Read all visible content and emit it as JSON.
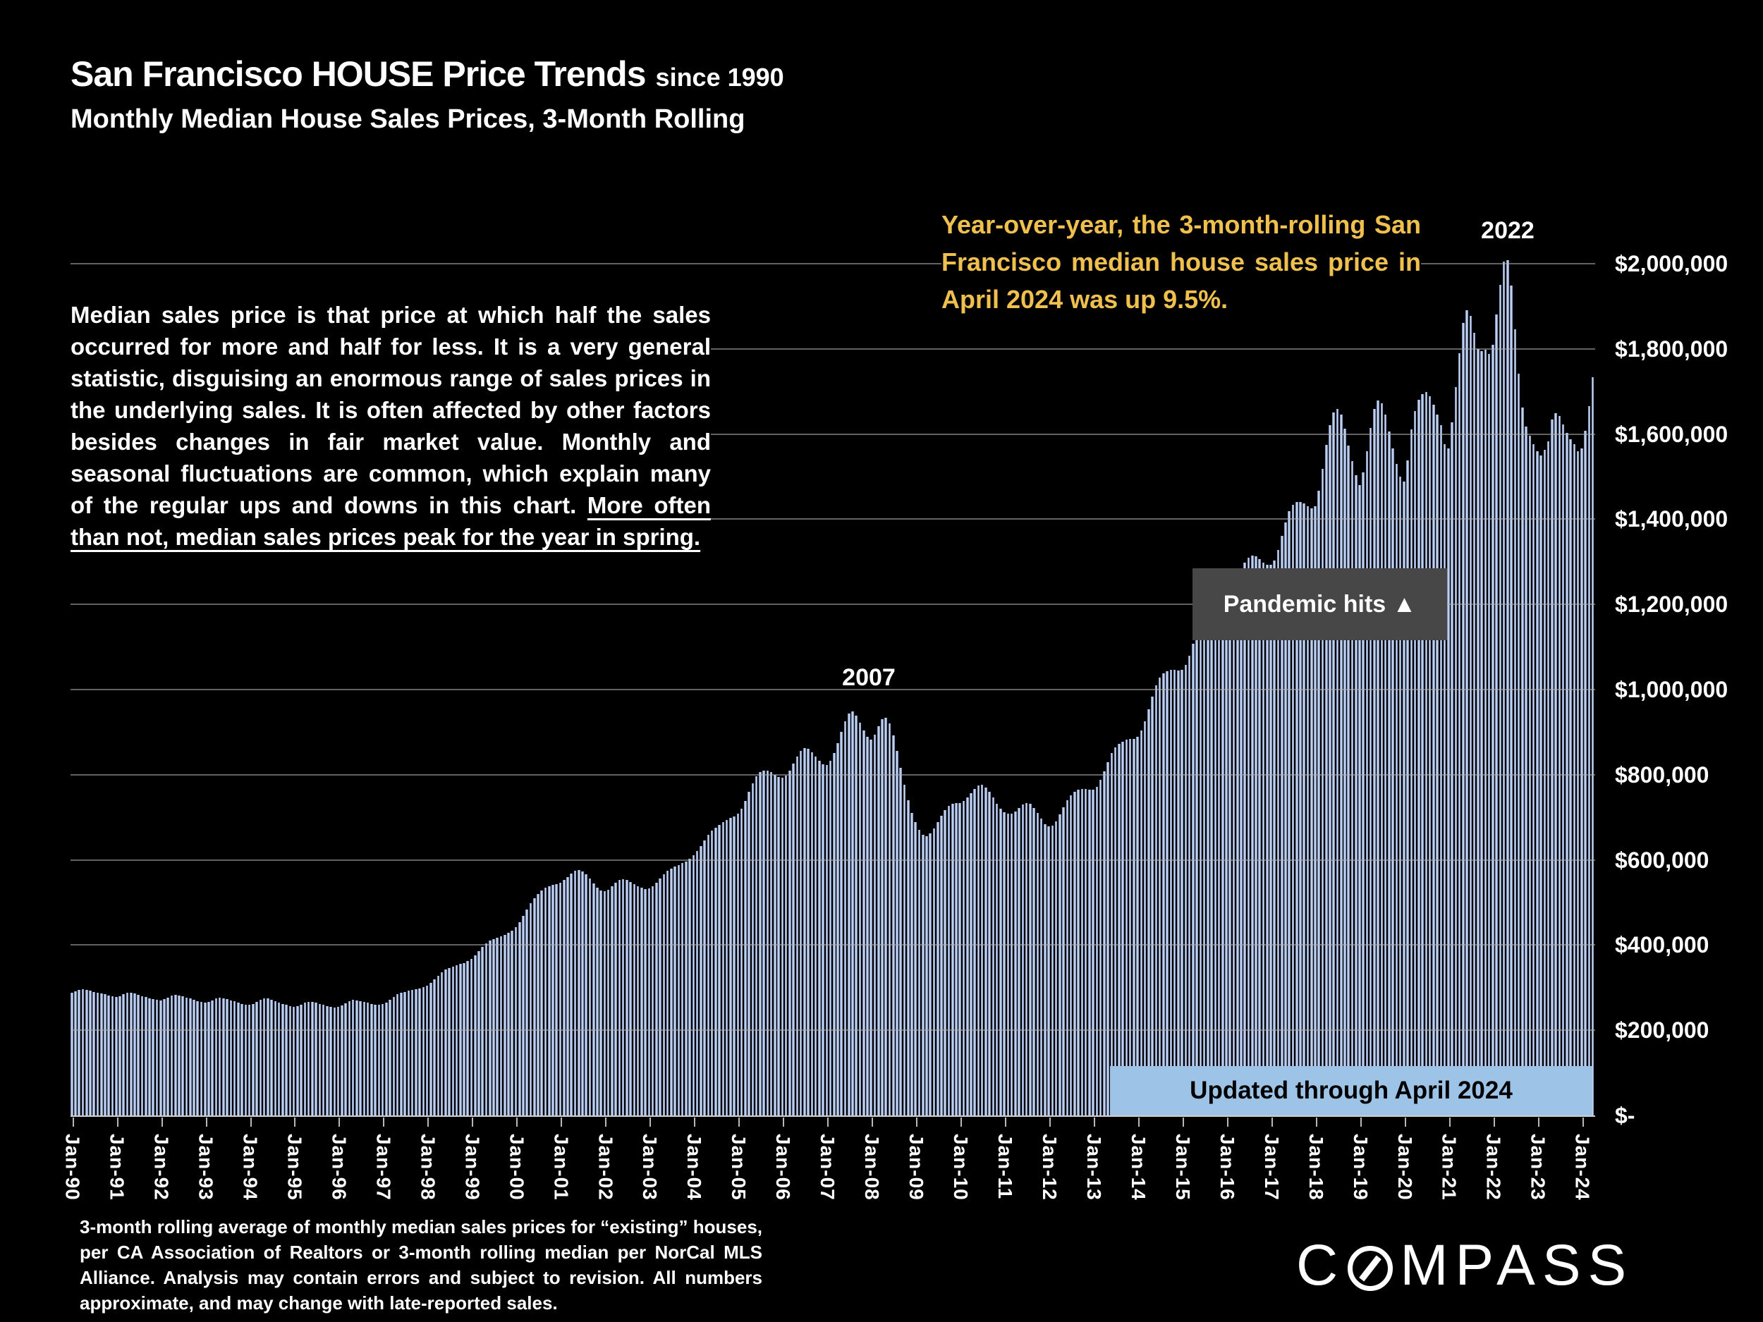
{
  "title": {
    "main": "San Francisco HOUSE Price Trends",
    "suffix": "since 1990",
    "subtitle": "Monthly Median House Sales Prices, 3-Month Rolling"
  },
  "commentary": {
    "body": "Median sales price is that price at which half the sales occurred for more and half for less. It is a very general statistic, disguising an enormous range of sales prices in the underlying sales. It is often affected by other factors besides changes in fair market value. Monthly and seasonal fluctuations are common, which explain many of the regular ups and downs in this chart. ",
    "underlined": "More often than not, median sales prices peak for the year in spring."
  },
  "yoy_note": "Year-over-year, the 3-month-rolling San Francisco median house sales price in April 2024 was up 9.5%.",
  "labels": {
    "peak_2007": "2007",
    "peak_2022": "2022",
    "pandemic": "Pandemic hits ▲",
    "updated": "Updated through April 2024"
  },
  "footnote": "3-month rolling average of monthly median sales prices for “existing” houses, per CA Association of Realtors or 3-month rolling median per NorCal MLS Alliance. Analysis may contain errors and subject to revision. All numbers approximate, and may change with late-reported sales.",
  "logo": {
    "left": "C",
    "right": "MPASS"
  },
  "colors": {
    "background": "#000000",
    "bar_light": "#d6e0f4",
    "bar_dark": "#5e739c",
    "gold_text": "#efc04d",
    "pandemic_box": "#474747",
    "banner_blue": "#9dc3e6"
  },
  "chart_data": {
    "type": "bar",
    "title": "San Francisco HOUSE Price Trends since 1990 — Monthly Median House Sales Prices, 3-Month Rolling",
    "unit": "USD (values stored in thousands)",
    "frequency": "monthly",
    "x_start": "Jan-1990",
    "x_end": "Apr-2024",
    "ylim": [
      0,
      2000000
    ],
    "grid": true,
    "y_ticks": [
      {
        "label": "$2,000,000",
        "k": 2000
      },
      {
        "label": "$1,800,000",
        "k": 1800
      },
      {
        "label": "$1,600,000",
        "k": 1600
      },
      {
        "label": "$1,400,000",
        "k": 1400
      },
      {
        "label": "$1,200,000",
        "k": 1200
      },
      {
        "label": "$1,000,000",
        "k": 1000
      },
      {
        "label": "$800,000",
        "k": 800
      },
      {
        "label": "$600,000",
        "k": 600
      },
      {
        "label": "$400,000",
        "k": 400
      },
      {
        "label": "$200,000",
        "k": 200
      },
      {
        "label": "$-",
        "k": 0
      }
    ],
    "x_tick_labels": [
      "Jan-90",
      "Jan-91",
      "Jan-92",
      "Jan-93",
      "Jan-94",
      "Jan-95",
      "Jan-96",
      "Jan-97",
      "Jan-98",
      "Jan-99",
      "Jan-00",
      "Jan-01",
      "Jan-02",
      "Jan-03",
      "Jan-04",
      "Jan-05",
      "Jan-06",
      "Jan-07",
      "Jan-08",
      "Jan-09",
      "Jan-10",
      "Jan-11",
      "Jan-12",
      "Jan-13",
      "Jan-14",
      "Jan-15",
      "Jan-16",
      "Jan-17",
      "Jan-18",
      "Jan-19",
      "Jan-20",
      "Jan-21",
      "Jan-22",
      "Jan-23",
      "Jan-24"
    ],
    "annotations": [
      {
        "text": "2007",
        "at": "mid-2007 peak ≈ $950,000"
      },
      {
        "text": "2022",
        "at": "spring 2022 peak ≈ $2,010,000"
      },
      {
        "text": "Pandemic hits ▲",
        "at": "early 2020"
      },
      {
        "text": "Updated through April 2024",
        "at": "series end"
      }
    ],
    "values_k": [
      290,
      293,
      296,
      298,
      297,
      295,
      292,
      290,
      288,
      286,
      284,
      282,
      280,
      282,
      286,
      289,
      290,
      288,
      285,
      282,
      280,
      277,
      275,
      273,
      272,
      275,
      279,
      283,
      285,
      284,
      281,
      278,
      276,
      273,
      270,
      268,
      266,
      268,
      272,
      276,
      278,
      277,
      275,
      272,
      270,
      267,
      264,
      262,
      261,
      264,
      268,
      273,
      277,
      276,
      273,
      270,
      267,
      264,
      261,
      258,
      256,
      258,
      262,
      266,
      269,
      268,
      266,
      263,
      261,
      258,
      256,
      255,
      257,
      260,
      265,
      270,
      273,
      272,
      270,
      268,
      266,
      264,
      262,
      261,
      263,
      267,
      273,
      280,
      286,
      290,
      292,
      294,
      296,
      298,
      300,
      303,
      307,
      313,
      321,
      330,
      338,
      344,
      348,
      351,
      354,
      357,
      360,
      364,
      370,
      378,
      388,
      398,
      406,
      412,
      416,
      419,
      422,
      426,
      430,
      436,
      444,
      456,
      470,
      486,
      500,
      512,
      522,
      530,
      536,
      540,
      543,
      545,
      548,
      554,
      562,
      570,
      576,
      578,
      575,
      568,
      558,
      546,
      536,
      530,
      528,
      532,
      540,
      548,
      554,
      556,
      554,
      550,
      545,
      540,
      536,
      534,
      535,
      540,
      548,
      558,
      568,
      576,
      582,
      586,
      590,
      594,
      598,
      604,
      612,
      622,
      634,
      648,
      660,
      670,
      678,
      684,
      690,
      696,
      700,
      704,
      710,
      722,
      740,
      762,
      782,
      798,
      808,
      812,
      812,
      808,
      802,
      796,
      794,
      800,
      812,
      828,
      845,
      858,
      864,
      862,
      854,
      844,
      834,
      826,
      824,
      834,
      852,
      876,
      902,
      928,
      946,
      950,
      940,
      924,
      906,
      890,
      884,
      896,
      916,
      932,
      936,
      922,
      894,
      858,
      818,
      778,
      742,
      712,
      690,
      672,
      660,
      658,
      664,
      676,
      690,
      705,
      718,
      728,
      733,
      735,
      736,
      740,
      748,
      758,
      768,
      776,
      778,
      772,
      762,
      748,
      734,
      722,
      714,
      710,
      710,
      715,
      724,
      732,
      736,
      733,
      724,
      712,
      698,
      686,
      680,
      682,
      692,
      708,
      726,
      742,
      754,
      762,
      766,
      768,
      768,
      766,
      766,
      774,
      790,
      810,
      832,
      852,
      866,
      875,
      880,
      884,
      886,
      886,
      890,
      905,
      928,
      955,
      985,
      1012,
      1030,
      1040,
      1045,
      1048,
      1048,
      1046,
      1048,
      1060,
      1082,
      1110,
      1140,
      1168,
      1188,
      1200,
      1206,
      1208,
      1206,
      1202,
      1200,
      1210,
      1230,
      1255,
      1280,
      1300,
      1312,
      1316,
      1314,
      1308,
      1300,
      1294,
      1294,
      1305,
      1330,
      1362,
      1394,
      1420,
      1436,
      1442,
      1442,
      1438,
      1432,
      1428,
      1432,
      1468,
      1520,
      1576,
      1622,
      1652,
      1660,
      1648,
      1615,
      1575,
      1538,
      1505,
      1482,
      1512,
      1562,
      1616,
      1660,
      1680,
      1674,
      1648,
      1608,
      1568,
      1532,
      1502,
      1490,
      1540,
      1612,
      1656,
      1682,
      1696,
      1700,
      1690,
      1670,
      1648,
      1622,
      1578,
      1568,
      1630,
      1712,
      1792,
      1862,
      1892,
      1880,
      1840,
      1802,
      1796,
      1800,
      1790,
      1812,
      1882,
      1952,
      2006,
      2010,
      1950,
      1848,
      1744,
      1664,
      1620,
      1598,
      1578,
      1562,
      1552,
      1564,
      1585,
      1636,
      1650,
      1644,
      1624,
      1604,
      1590,
      1578,
      1562,
      1568,
      1610,
      1668,
      1735
    ]
  }
}
